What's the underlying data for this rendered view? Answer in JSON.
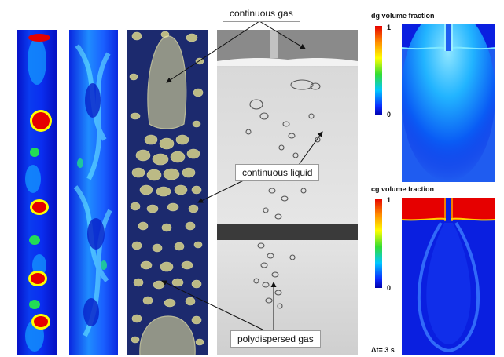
{
  "annotations": {
    "continuous_gas": "continuous gas",
    "continuous_liquid": "continuous liquid",
    "polydispersed_gas": "polydispersed gas"
  },
  "sim_top": {
    "title": "dg volume fraction",
    "max_label": "1",
    "min_label": "0"
  },
  "sim_bottom": {
    "title": "cg volume fraction",
    "max_label": "1",
    "min_label": "0"
  },
  "time_label": "Δt= 3 s",
  "colors": {
    "field_blue": "#0a1fe0",
    "hot_red": "#e60000",
    "bubble_yellow": "#d8d48a",
    "column_navy": "#1c2a6e"
  }
}
